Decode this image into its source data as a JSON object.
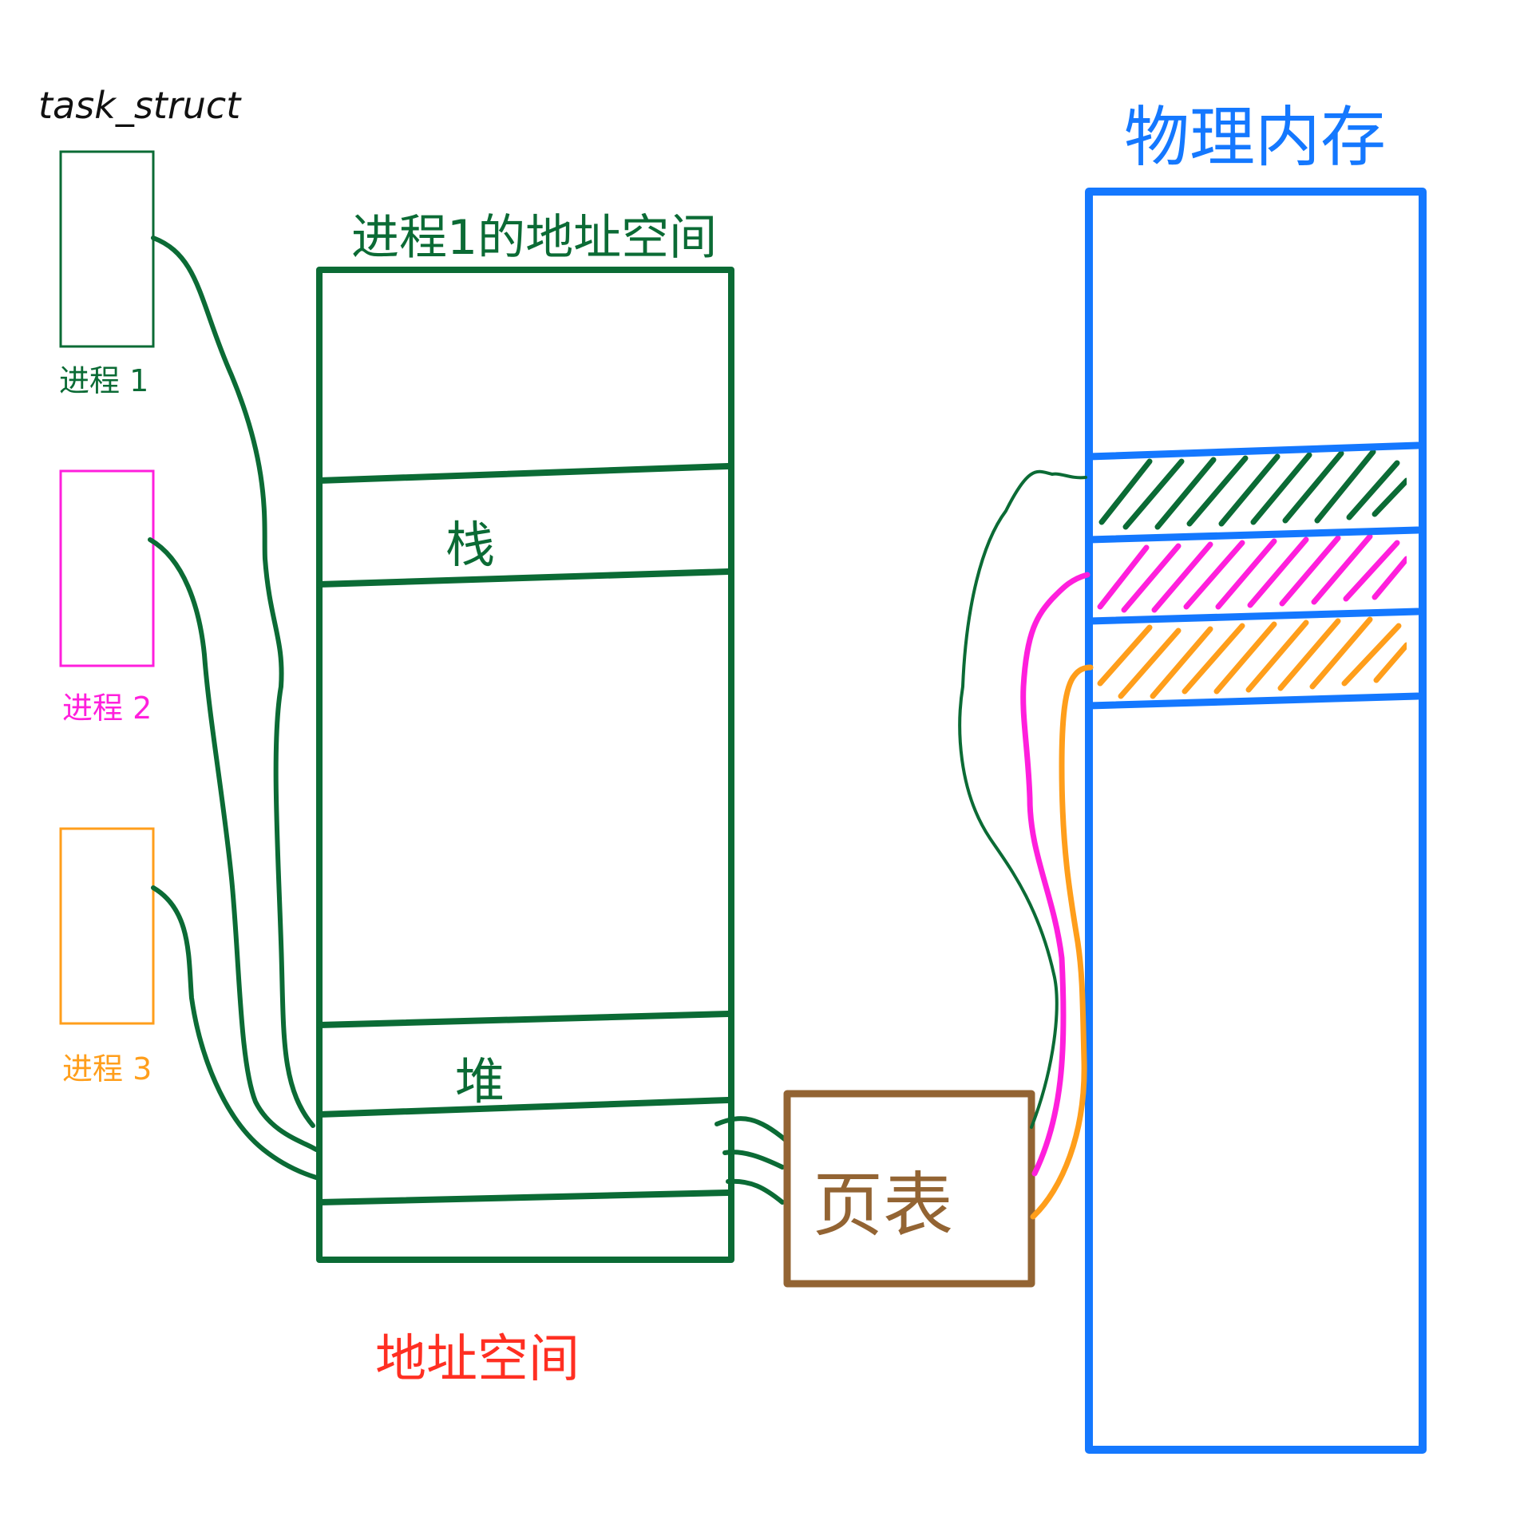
{
  "labels": {
    "task_struct": "task_struct",
    "process1": "进程 1",
    "process2": "进程 2",
    "process3": "进程 3",
    "address_space_title": "进程1的地址空间",
    "stack": "栈",
    "heap": "堆",
    "address_space_caption": "地址空间",
    "page_table": "页表",
    "physical_memory": "物理内存"
  },
  "colors": {
    "green": "#0b6b35",
    "magenta": "#ff1fdc",
    "orange": "#ff9e1b",
    "brown": "#936433",
    "blue": "#1478ff",
    "red": "#ff2f22",
    "black": "#111111"
  }
}
